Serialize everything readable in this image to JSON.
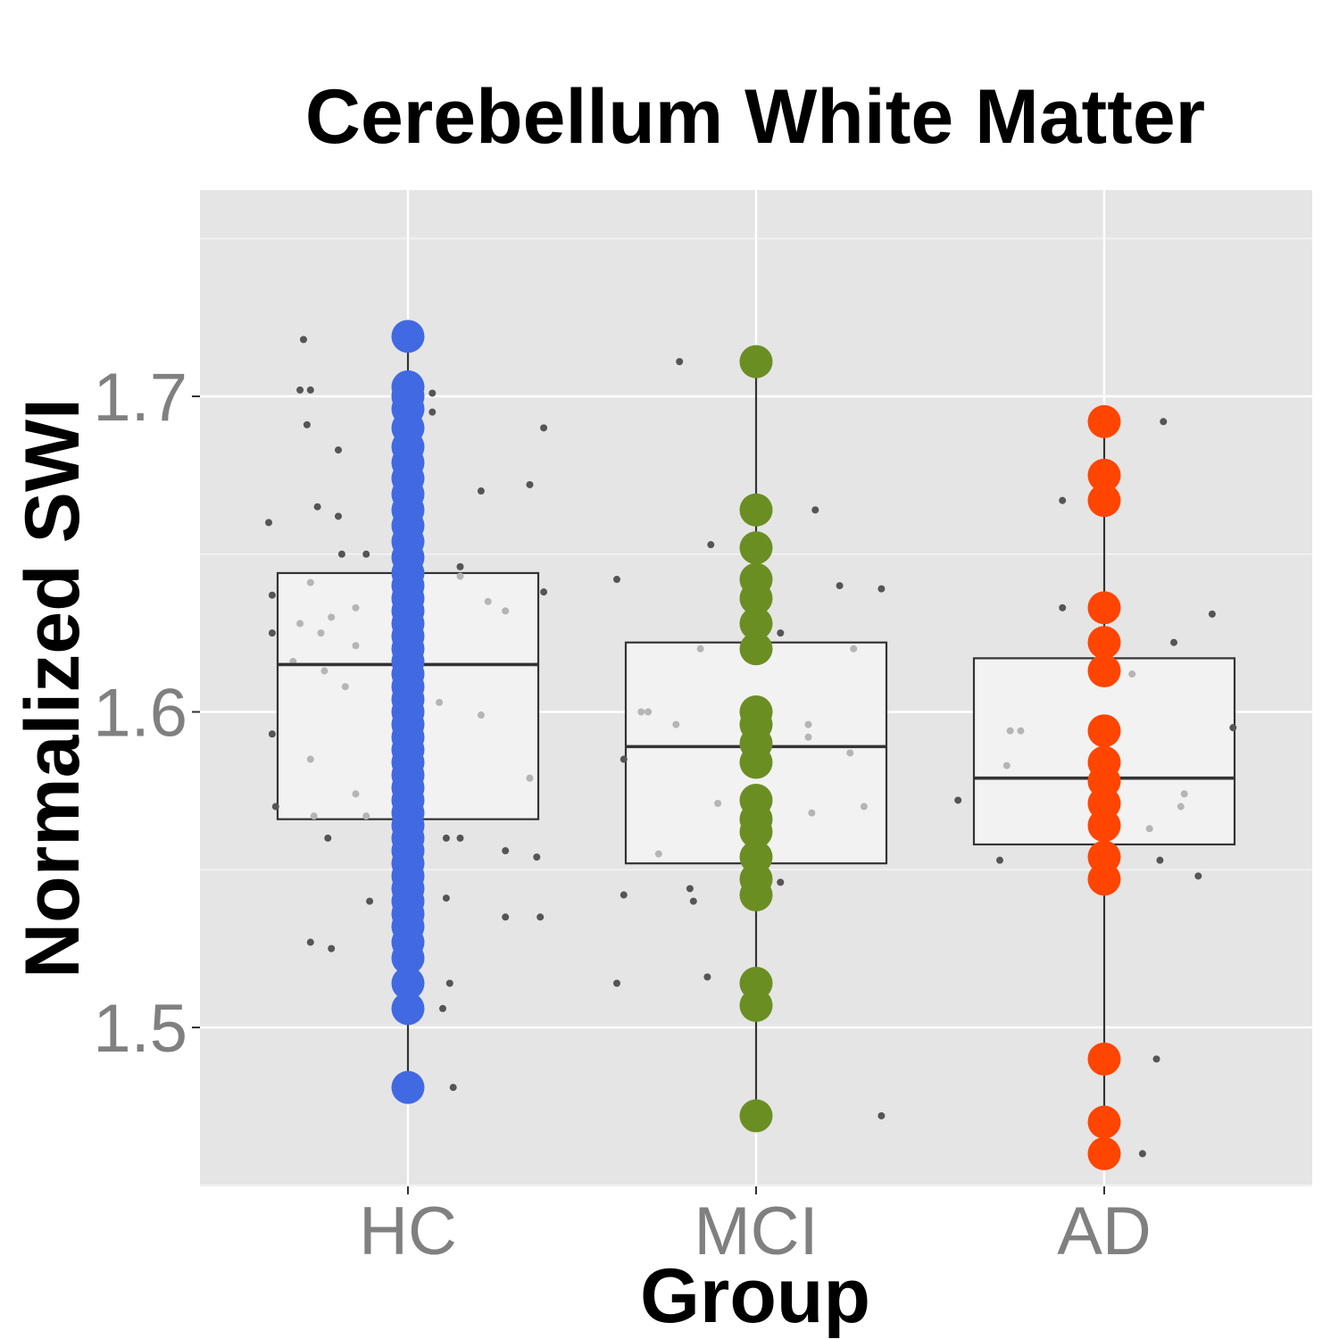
{
  "chart_data": {
    "type": "box",
    "title": "Cerebellum White Matter",
    "xlabel": "Group",
    "ylabel": "Normalized SWI",
    "categories": [
      "HC",
      "MCI",
      "AD"
    ],
    "ylim": [
      1.45,
      1.765
    ],
    "yticks": [
      1.5,
      1.6,
      1.7
    ],
    "ytick_labels": [
      "1.5",
      "1.6",
      "1.7"
    ],
    "grid": true,
    "colors": {
      "panel_bg": "#e5e5e5",
      "grid": "#ffffff",
      "box_fill": "#f2f2f2",
      "box_line": "#333333",
      "jitter": "#555555",
      "HC": "#4169e1",
      "MCI": "#6b8e23",
      "AD": "#ff4500"
    },
    "boxes": [
      {
        "group": "HC",
        "min": 1.481,
        "q1": 1.566,
        "median": 1.615,
        "q3": 1.644,
        "max": 1.719
      },
      {
        "group": "MCI",
        "min": 1.472,
        "q1": 1.552,
        "median": 1.589,
        "q3": 1.622,
        "max": 1.711
      },
      {
        "group": "AD",
        "min": 1.46,
        "q1": 1.558,
        "median": 1.579,
        "q3": 1.617,
        "max": 1.692
      }
    ],
    "series": [
      {
        "name": "HC",
        "values": [
          1.719,
          1.703,
          1.7,
          1.696,
          1.69,
          1.684,
          1.679,
          1.674,
          1.669,
          1.664,
          1.659,
          1.654,
          1.649,
          1.644,
          1.64,
          1.636,
          1.632,
          1.628,
          1.624,
          1.62,
          1.616,
          1.612,
          1.608,
          1.604,
          1.6,
          1.596,
          1.592,
          1.588,
          1.584,
          1.58,
          1.576,
          1.572,
          1.568,
          1.564,
          1.56,
          1.556,
          1.552,
          1.548,
          1.544,
          1.54,
          1.536,
          1.532,
          1.527,
          1.522,
          1.514,
          1.506,
          1.481
        ]
      },
      {
        "name": "MCI",
        "values": [
          1.711,
          1.664,
          1.652,
          1.642,
          1.636,
          1.628,
          1.62,
          1.6,
          1.596,
          1.59,
          1.584,
          1.572,
          1.566,
          1.562,
          1.554,
          1.547,
          1.542,
          1.514,
          1.507,
          1.472
        ]
      },
      {
        "name": "AD",
        "values": [
          1.692,
          1.675,
          1.667,
          1.633,
          1.622,
          1.613,
          1.594,
          1.584,
          1.578,
          1.571,
          1.564,
          1.554,
          1.547,
          1.49,
          1.47,
          1.46
        ]
      }
    ],
    "jitter_points": [
      {
        "group": "HC",
        "dx": -0.3,
        "y": 1.718
      },
      {
        "group": "HC",
        "dx": -0.31,
        "y": 1.702
      },
      {
        "group": "HC",
        "dx": -0.28,
        "y": 1.702
      },
      {
        "group": "HC",
        "dx": -0.29,
        "y": 1.691
      },
      {
        "group": "HC",
        "dx": -0.2,
        "y": 1.683
      },
      {
        "group": "HC",
        "dx": -0.4,
        "y": 1.66
      },
      {
        "group": "HC",
        "dx": -0.26,
        "y": 1.665
      },
      {
        "group": "HC",
        "dx": -0.2,
        "y": 1.662
      },
      {
        "group": "HC",
        "dx": -0.19,
        "y": 1.65
      },
      {
        "group": "HC",
        "dx": -0.12,
        "y": 1.65
      },
      {
        "group": "HC",
        "dx": -0.39,
        "y": 1.637
      },
      {
        "group": "HC",
        "dx": -0.39,
        "y": 1.625
      },
      {
        "group": "HC",
        "dx": -0.39,
        "y": 1.593
      },
      {
        "group": "HC",
        "dx": -0.38,
        "y": 1.57
      },
      {
        "group": "HC",
        "dx": -0.23,
        "y": 1.56
      },
      {
        "group": "HC",
        "dx": -0.28,
        "y": 1.527
      },
      {
        "group": "HC",
        "dx": -0.22,
        "y": 1.525
      },
      {
        "group": "HC",
        "dx": -0.11,
        "y": 1.54
      },
      {
        "group": "HC",
        "dx": 0.07,
        "y": 1.701
      },
      {
        "group": "HC",
        "dx": 0.07,
        "y": 1.695
      },
      {
        "group": "HC",
        "dx": 0.21,
        "y": 1.67
      },
      {
        "group": "HC",
        "dx": 0.35,
        "y": 1.672
      },
      {
        "group": "HC",
        "dx": 0.39,
        "y": 1.69
      },
      {
        "group": "HC",
        "dx": 0.15,
        "y": 1.646
      },
      {
        "group": "HC",
        "dx": 0.39,
        "y": 1.638
      },
      {
        "group": "HC",
        "dx": 0.11,
        "y": 1.56
      },
      {
        "group": "HC",
        "dx": 0.15,
        "y": 1.56
      },
      {
        "group": "HC",
        "dx": 0.28,
        "y": 1.556
      },
      {
        "group": "HC",
        "dx": 0.37,
        "y": 1.554
      },
      {
        "group": "HC",
        "dx": 0.11,
        "y": 1.541
      },
      {
        "group": "HC",
        "dx": 0.28,
        "y": 1.535
      },
      {
        "group": "HC",
        "dx": 0.38,
        "y": 1.535
      },
      {
        "group": "HC",
        "dx": 0.12,
        "y": 1.514
      },
      {
        "group": "HC",
        "dx": 0.1,
        "y": 1.506
      },
      {
        "group": "HC",
        "dx": 0.13,
        "y": 1.481
      },
      {
        "group": "MCI",
        "dx": -0.22,
        "y": 1.711
      },
      {
        "group": "MCI",
        "dx": -0.4,
        "y": 1.642
      },
      {
        "group": "MCI",
        "dx": -0.13,
        "y": 1.653
      },
      {
        "group": "MCI",
        "dx": -0.38,
        "y": 1.542
      },
      {
        "group": "MCI",
        "dx": -0.19,
        "y": 1.544
      },
      {
        "group": "MCI",
        "dx": -0.18,
        "y": 1.54
      },
      {
        "group": "MCI",
        "dx": -0.4,
        "y": 1.514
      },
      {
        "group": "MCI",
        "dx": -0.14,
        "y": 1.516
      },
      {
        "group": "MCI",
        "dx": -0.38,
        "y": 1.585
      },
      {
        "group": "MCI",
        "dx": 0.17,
        "y": 1.664
      },
      {
        "group": "MCI",
        "dx": 0.24,
        "y": 1.64
      },
      {
        "group": "MCI",
        "dx": 0.36,
        "y": 1.639
      },
      {
        "group": "MCI",
        "dx": 0.07,
        "y": 1.625
      },
      {
        "group": "MCI",
        "dx": 0.07,
        "y": 1.546
      },
      {
        "group": "MCI",
        "dx": 0.36,
        "y": 1.472
      },
      {
        "group": "AD",
        "dx": -0.12,
        "y": 1.667
      },
      {
        "group": "AD",
        "dx": 0.17,
        "y": 1.692
      },
      {
        "group": "AD",
        "dx": -0.12,
        "y": 1.633
      },
      {
        "group": "AD",
        "dx": 0.2,
        "y": 1.622
      },
      {
        "group": "AD",
        "dx": 0.31,
        "y": 1.631
      },
      {
        "group": "AD",
        "dx": 0.37,
        "y": 1.595
      },
      {
        "group": "AD",
        "dx": -0.42,
        "y": 1.572
      },
      {
        "group": "AD",
        "dx": -0.3,
        "y": 1.553
      },
      {
        "group": "AD",
        "dx": 0.16,
        "y": 1.553
      },
      {
        "group": "AD",
        "dx": 0.27,
        "y": 1.548
      },
      {
        "group": "AD",
        "dx": 0.15,
        "y": 1.49
      },
      {
        "group": "AD",
        "dx": 0.11,
        "y": 1.46
      }
    ],
    "faint_points": [
      {
        "group": "HC",
        "dx": -0.28,
        "y": 1.641
      },
      {
        "group": "HC",
        "dx": -0.31,
        "y": 1.628
      },
      {
        "group": "HC",
        "dx": -0.22,
        "y": 1.63
      },
      {
        "group": "HC",
        "dx": -0.25,
        "y": 1.625
      },
      {
        "group": "HC",
        "dx": -0.15,
        "y": 1.633
      },
      {
        "group": "HC",
        "dx": -0.15,
        "y": 1.621
      },
      {
        "group": "HC",
        "dx": -0.33,
        "y": 1.616
      },
      {
        "group": "HC",
        "dx": -0.24,
        "y": 1.613
      },
      {
        "group": "HC",
        "dx": -0.18,
        "y": 1.608
      },
      {
        "group": "HC",
        "dx": -0.28,
        "y": 1.585
      },
      {
        "group": "HC",
        "dx": -0.15,
        "y": 1.574
      },
      {
        "group": "HC",
        "dx": -0.27,
        "y": 1.567
      },
      {
        "group": "HC",
        "dx": -0.12,
        "y": 1.567
      },
      {
        "group": "HC",
        "dx": 0.15,
        "y": 1.643
      },
      {
        "group": "HC",
        "dx": 0.23,
        "y": 1.635
      },
      {
        "group": "HC",
        "dx": 0.28,
        "y": 1.632
      },
      {
        "group": "HC",
        "dx": 0.09,
        "y": 1.603
      },
      {
        "group": "HC",
        "dx": 0.21,
        "y": 1.599
      },
      {
        "group": "HC",
        "dx": 0.35,
        "y": 1.579
      },
      {
        "group": "MCI",
        "dx": -0.33,
        "y": 1.6
      },
      {
        "group": "MCI",
        "dx": -0.31,
        "y": 1.6
      },
      {
        "group": "MCI",
        "dx": -0.23,
        "y": 1.596
      },
      {
        "group": "MCI",
        "dx": -0.16,
        "y": 1.62
      },
      {
        "group": "MCI",
        "dx": -0.11,
        "y": 1.571
      },
      {
        "group": "MCI",
        "dx": -0.28,
        "y": 1.555
      },
      {
        "group": "MCI",
        "dx": 0.15,
        "y": 1.596
      },
      {
        "group": "MCI",
        "dx": 0.15,
        "y": 1.592
      },
      {
        "group": "MCI",
        "dx": 0.27,
        "y": 1.587
      },
      {
        "group": "MCI",
        "dx": 0.31,
        "y": 1.57
      },
      {
        "group": "MCI",
        "dx": 0.16,
        "y": 1.568
      },
      {
        "group": "MCI",
        "dx": 0.28,
        "y": 1.62
      },
      {
        "group": "AD",
        "dx": -0.27,
        "y": 1.594
      },
      {
        "group": "AD",
        "dx": -0.24,
        "y": 1.594
      },
      {
        "group": "AD",
        "dx": -0.28,
        "y": 1.583
      },
      {
        "group": "AD",
        "dx": 0.08,
        "y": 1.612
      },
      {
        "group": "AD",
        "dx": 0.23,
        "y": 1.574
      },
      {
        "group": "AD",
        "dx": 0.22,
        "y": 1.57
      },
      {
        "group": "AD",
        "dx": 0.13,
        "y": 1.563
      }
    ]
  }
}
